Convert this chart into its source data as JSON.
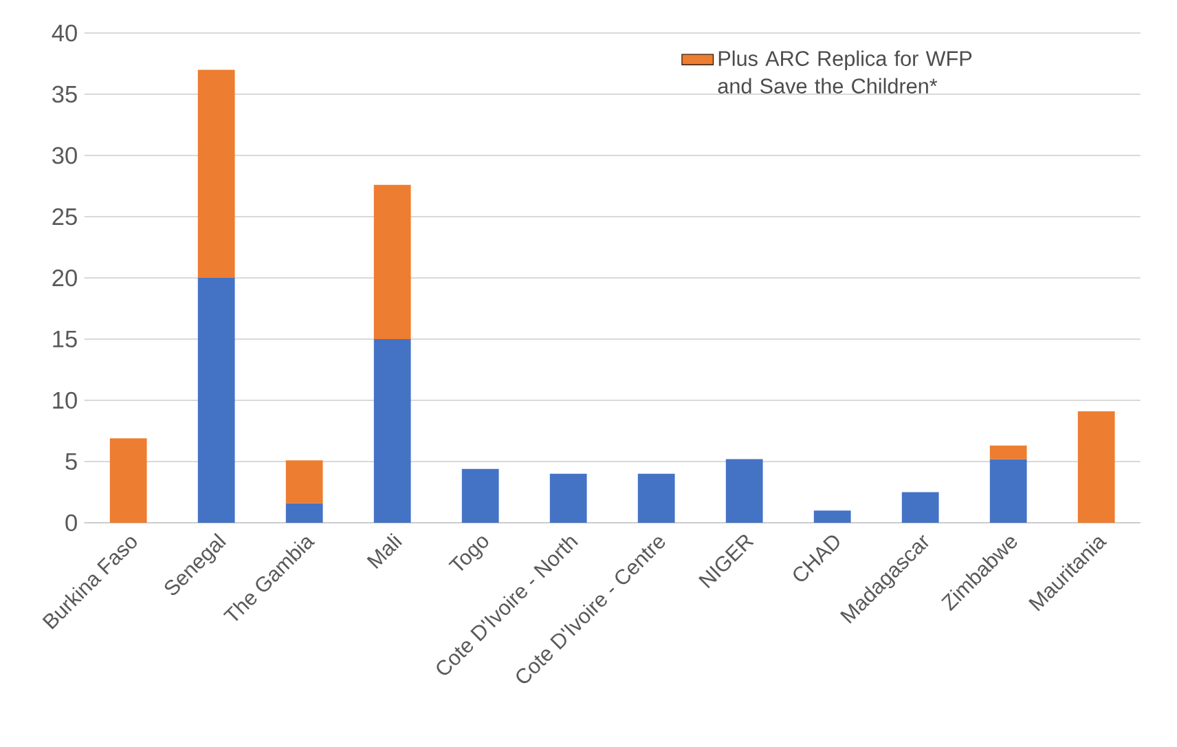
{
  "chart_data": {
    "type": "bar",
    "stacked": true,
    "categories": [
      "Burkina Faso",
      "Senegal",
      "The Gambia",
      "Mali",
      "Togo",
      "Cote D'Ivoire - North",
      "Cote D'Ivoire - Centre",
      "NIGER",
      "CHAD",
      "Madagascar",
      "Zimbabwe",
      "Mauritania"
    ],
    "series": [
      {
        "color": "#4472c4",
        "values": [
          null,
          20,
          1.6,
          15,
          4.4,
          4,
          4,
          5.2,
          1,
          2.5,
          5.2,
          null
        ]
      },
      {
        "name": "Plus ARC Replica for WFP and Save the Children*",
        "color": "#ed7d31",
        "values": [
          6.9,
          17,
          3.5,
          12.6,
          null,
          null,
          null,
          null,
          null,
          null,
          1.1,
          9.1
        ]
      }
    ],
    "ylim": [
      0,
      40
    ],
    "yticks": [
      0,
      5,
      10,
      15,
      20,
      25,
      30,
      35,
      40
    ],
    "grid": "y",
    "legend": "top right"
  }
}
